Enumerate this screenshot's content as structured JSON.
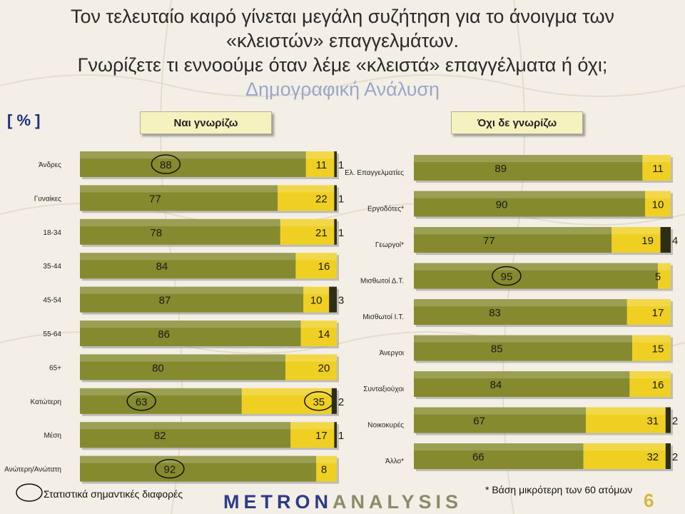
{
  "header": {
    "line1": "Τον τελευταίο καιρό γίνεται μεγάλη συζήτηση για το άνοιγμα των",
    "line2": "«κλειστών» επαγγελμάτων.",
    "line3": "Γνωρίζετε τι εννοούμε όταν λέμε «κλειστά» επαγγέλματα ή όχι;",
    "subtitle": "Δημογραφική Ανάλυση"
  },
  "unit_label": "[ % ]",
  "legend": {
    "yes": "Ναι γνωρίζω",
    "no": "Όχι δε γνωρίζω"
  },
  "colors": {
    "yes": "#868a2e",
    "no": "#efd022",
    "rest": "#2e2e14",
    "background": "#f3efe6"
  },
  "chart_data": [
    {
      "type": "bar",
      "orientation": "horizontal",
      "stacked": true,
      "categories": [
        "Άνδρες",
        "Γυναίκες",
        "18-34",
        "35-44",
        "45-54",
        "55-64",
        "65+",
        "Κατώτερη",
        "Μέση",
        "Ανώτερη/Ανώτατη"
      ],
      "series": [
        {
          "name": "Ναι γνωρίζω",
          "values": [
            88,
            77,
            78,
            84,
            87,
            86,
            80,
            63,
            82,
            92
          ]
        },
        {
          "name": "Όχι δε γνωρίζω",
          "values": [
            11,
            22,
            21,
            16,
            10,
            14,
            20,
            35,
            17,
            8
          ]
        },
        {
          "values": [
            1,
            1,
            1,
            null,
            3,
            null,
            null,
            2,
            1,
            null
          ]
        }
      ]
    },
    {
      "type": "bar",
      "orientation": "horizontal",
      "stacked": true,
      "categories": [
        "Ελ. Επαγγελματίες",
        "Εργοδότες*",
        "Γεωργοί*",
        "Μισθωτοί Δ.Τ.",
        "Μισθωτοί Ι.Τ.",
        "Άνεργοι",
        "Συνταξιούχοι",
        "Νοικοκυρές",
        "Άλλο*"
      ],
      "series": [
        {
          "name": "Ναι γνωρίζω",
          "values": [
            89,
            90,
            77,
            95,
            83,
            85,
            84,
            67,
            66
          ]
        },
        {
          "name": "Όχι δε γνωρίζω",
          "values": [
            11,
            10,
            19,
            5,
            17,
            15,
            16,
            31,
            32
          ]
        },
        {
          "values": [
            null,
            null,
            4,
            null,
            null,
            null,
            null,
            2,
            2
          ]
        }
      ]
    }
  ],
  "footer": {
    "significance": "Στατιστικά σημαντικές διαφορές",
    "note": "* Βάση μικρότερη των 60 ατόμων",
    "logo_a": "METRON",
    "logo_b": "ANALYSIS",
    "page": "6"
  }
}
